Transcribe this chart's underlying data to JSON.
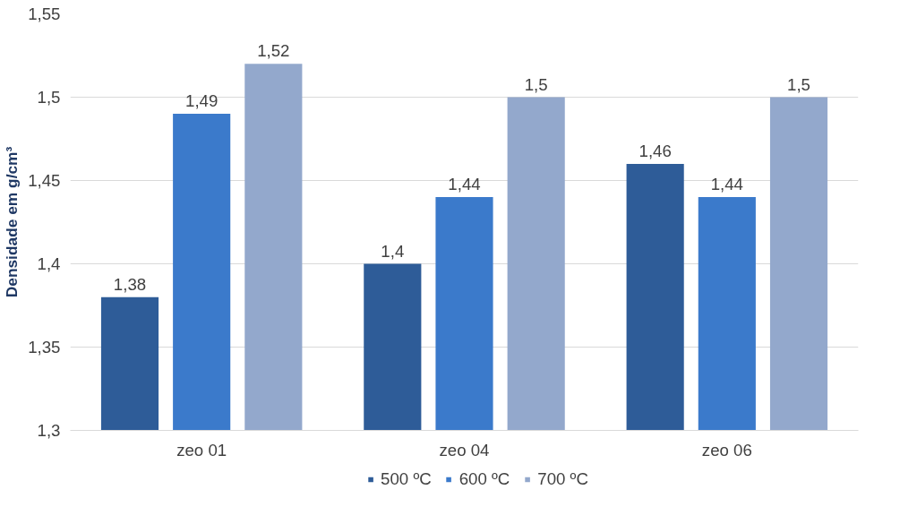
{
  "chart_data": {
    "type": "bar",
    "ylabel": "Densidade em g/cm³",
    "categories": [
      "zeo 01",
      "zeo 04",
      "zeo 06"
    ],
    "series": [
      {
        "name": "500 ºC",
        "color": "#2e5c98",
        "values": [
          1.38,
          1.4,
          1.46
        ],
        "value_labels": [
          "1,38",
          "1,4",
          "1,46"
        ]
      },
      {
        "name": "600 ºC",
        "color": "#3b7acb",
        "values": [
          1.49,
          1.44,
          1.44
        ],
        "value_labels": [
          "1,49",
          "1,44",
          "1,44"
        ]
      },
      {
        "name": "700 ºC",
        "color": "#93a8cc",
        "values": [
          1.52,
          1.5,
          1.5
        ],
        "value_labels": [
          "1,52",
          "1,5",
          "1,5"
        ]
      }
    ],
    "ylim": [
      1.3,
      1.55
    ],
    "yticks": [
      {
        "value": 1.3,
        "label": "1,3"
      },
      {
        "value": 1.35,
        "label": "1,35"
      },
      {
        "value": 1.4,
        "label": "1,4"
      },
      {
        "value": 1.45,
        "label": "1,45"
      },
      {
        "value": 1.5,
        "label": "1,5"
      },
      {
        "value": 1.55,
        "label": "1,55"
      }
    ],
    "grid": "y",
    "legend": "bottom"
  }
}
